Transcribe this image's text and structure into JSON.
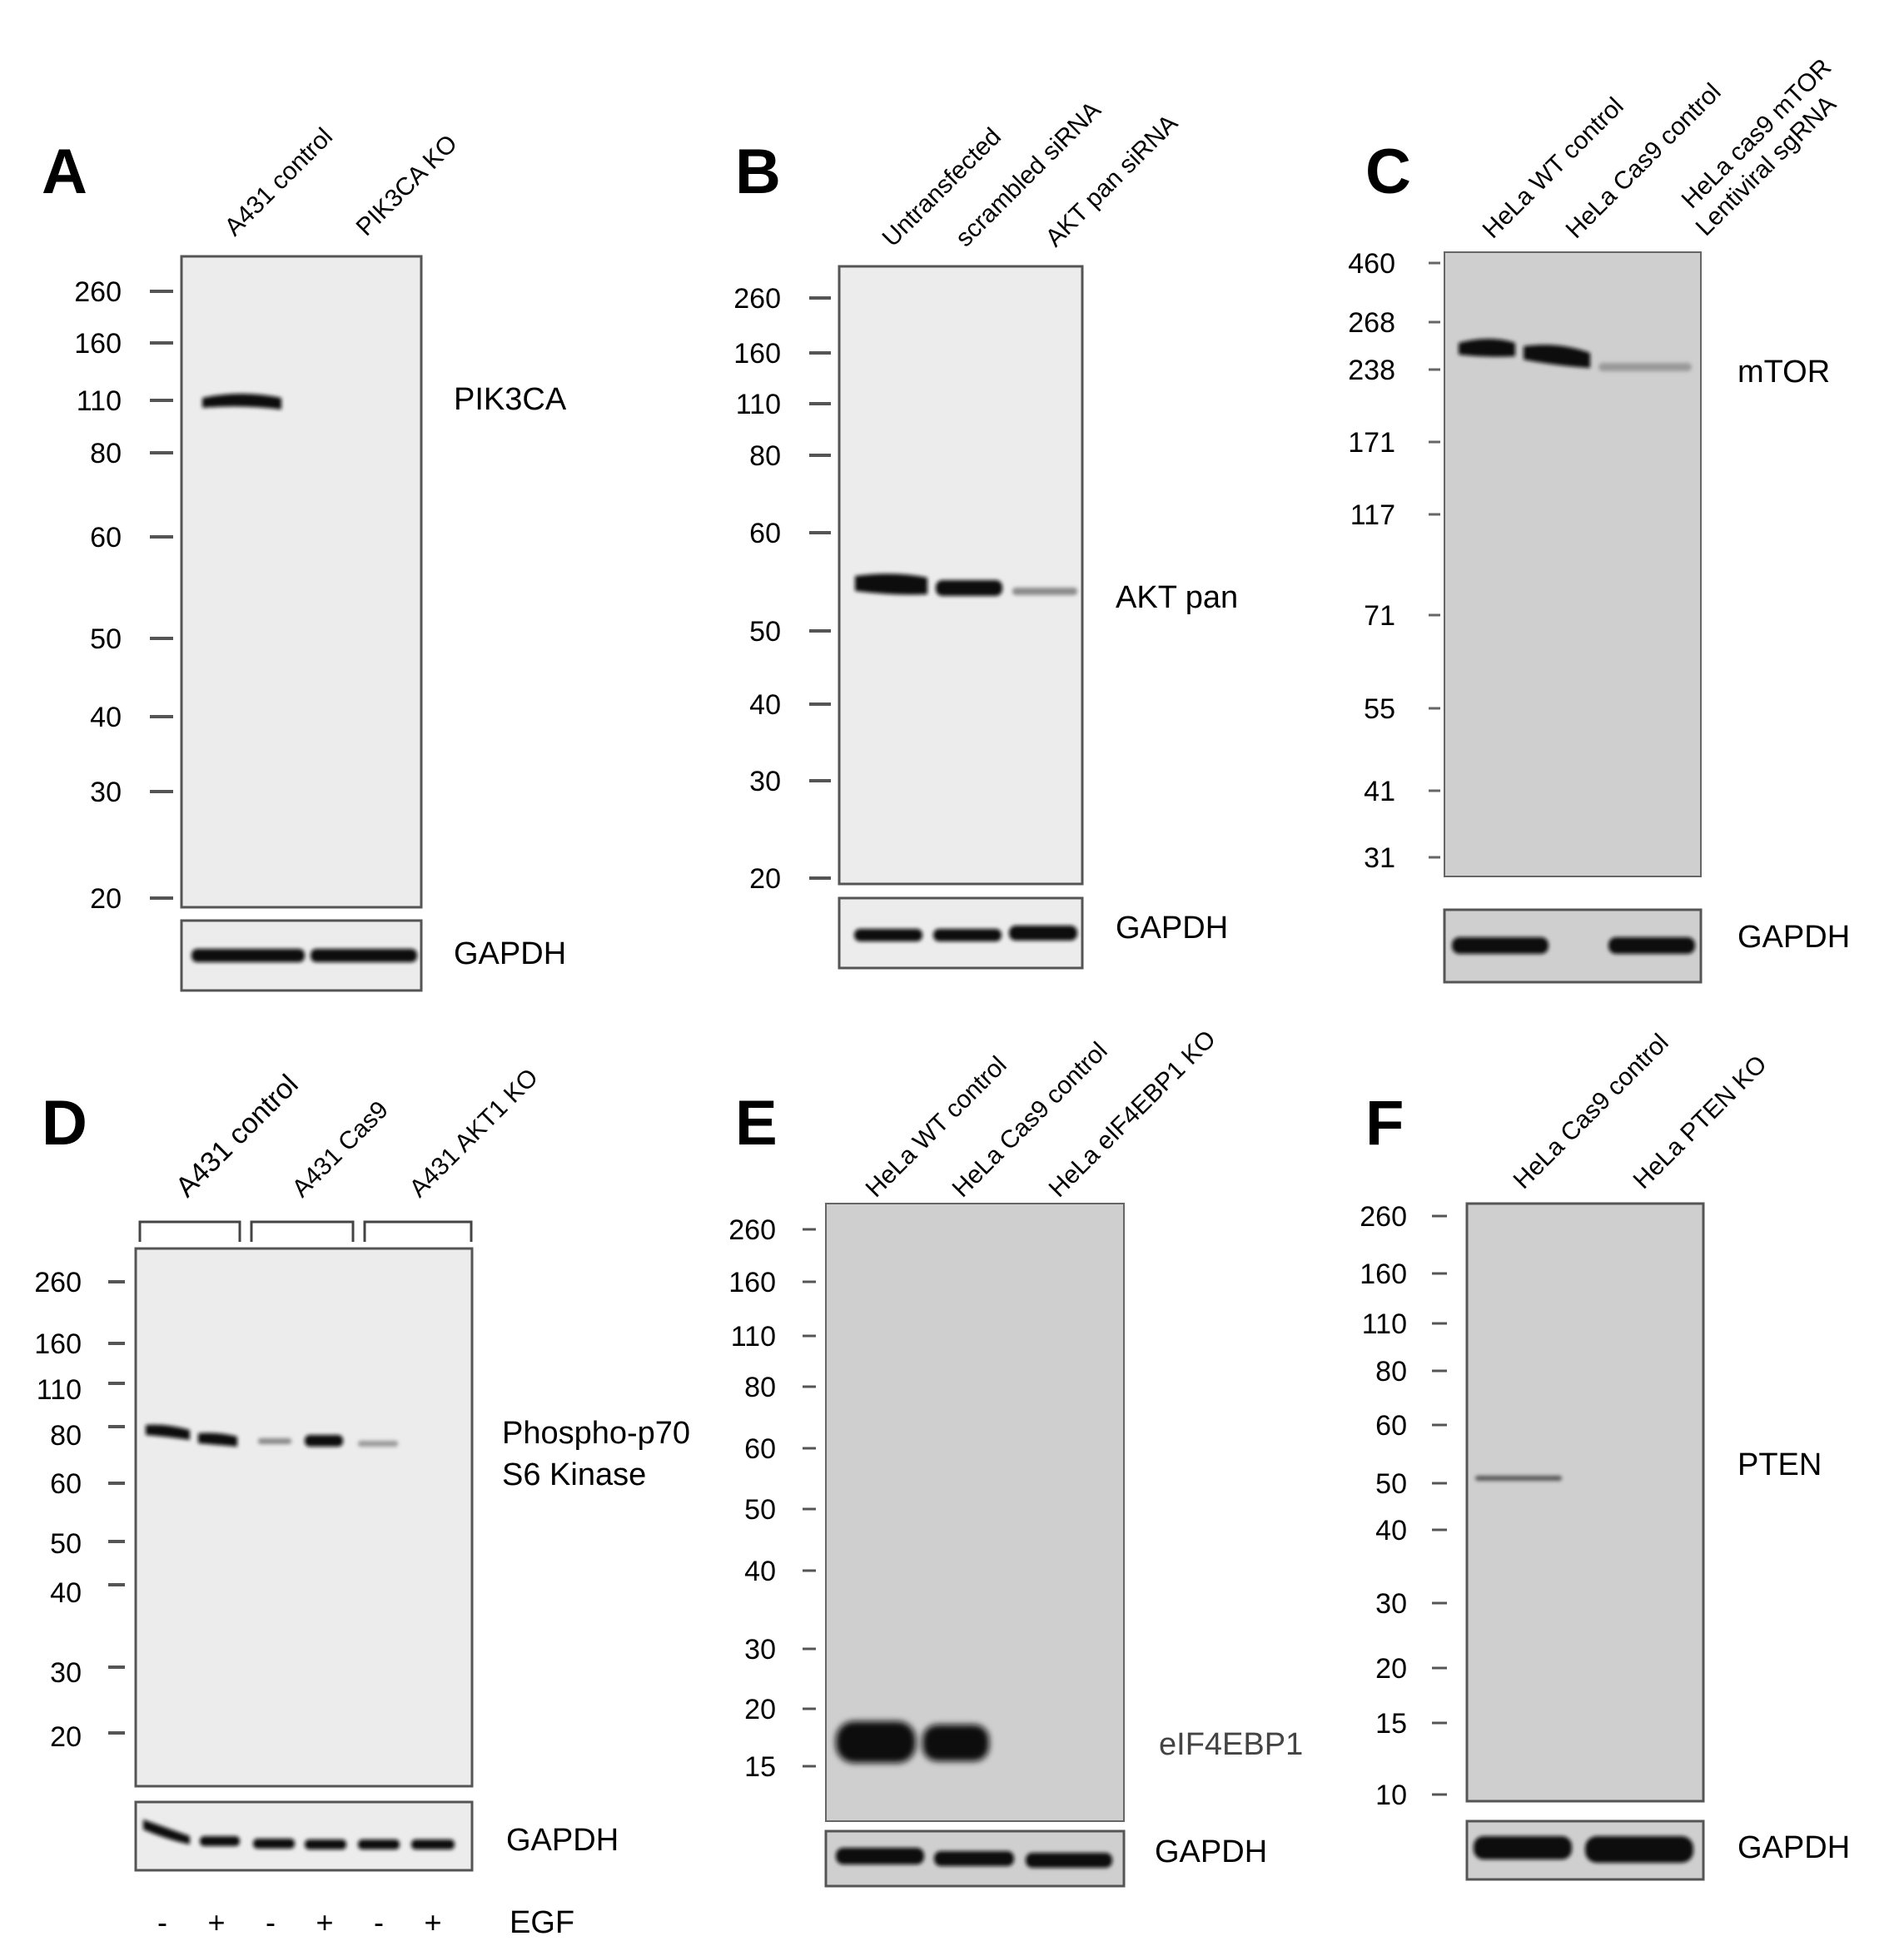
{
  "panels": [
    {
      "letter": "A",
      "lanes": [
        "A431 control",
        "PIK3CA KO"
      ],
      "markers": [
        "260",
        "160",
        "110",
        "80",
        "60",
        "50",
        "40",
        "30",
        "20"
      ],
      "target": "PIK3CA",
      "loading": "GAPDH"
    },
    {
      "letter": "B",
      "lanes": [
        "Untransfected",
        "scrambled siRNA",
        "AKT pan siRNA"
      ],
      "markers": [
        "260",
        "160",
        "110",
        "80",
        "60",
        "50",
        "40",
        "30",
        "20"
      ],
      "target": "AKT pan",
      "loading": "GAPDH"
    },
    {
      "letter": "C",
      "lanes": [
        "HeLa WT control",
        "HeLa Cas9 control",
        "HeLa cas9 mTOR",
        "Lentiviral sgRNA"
      ],
      "markers": [
        "460",
        "268",
        "238",
        "171",
        "117",
        "71",
        "55",
        "41",
        "31"
      ],
      "target": "mTOR",
      "loading": "GAPDH"
    },
    {
      "letter": "D",
      "lanes": [
        "A431 control",
        "A431 Cas9",
        "A431 AKT1 KO"
      ],
      "markers": [
        "260",
        "160",
        "110",
        "80",
        "60",
        "50",
        "40",
        "30",
        "20"
      ],
      "target_line1": "Phospho-p70",
      "target_line2": "S6 Kinase",
      "loading": "GAPDH",
      "treatment": [
        "-",
        "+",
        "-",
        "+",
        "-",
        "+"
      ],
      "treatment_label": "EGF"
    },
    {
      "letter": "E",
      "lanes": [
        "HeLa WT control",
        "HeLa Cas9 control",
        "HeLa eIF4EBP1 KO"
      ],
      "markers": [
        "260",
        "160",
        "110",
        "80",
        "60",
        "50",
        "40",
        "30",
        "20",
        "15"
      ],
      "target": "eIF4EBP1",
      "loading": "GAPDH"
    },
    {
      "letter": "F",
      "lanes": [
        "HeLa Cas9 control",
        "HeLa PTEN KO"
      ],
      "markers": [
        "260",
        "160",
        "110",
        "80",
        "60",
        "50",
        "40",
        "30",
        "20",
        "15",
        "10"
      ],
      "target": "PTEN",
      "loading": "GAPDH"
    }
  ],
  "colors": {
    "membrane_light": "#ececec",
    "membrane_gray": "#cfcfcf",
    "band": "#111111",
    "frame": "#555555"
  }
}
